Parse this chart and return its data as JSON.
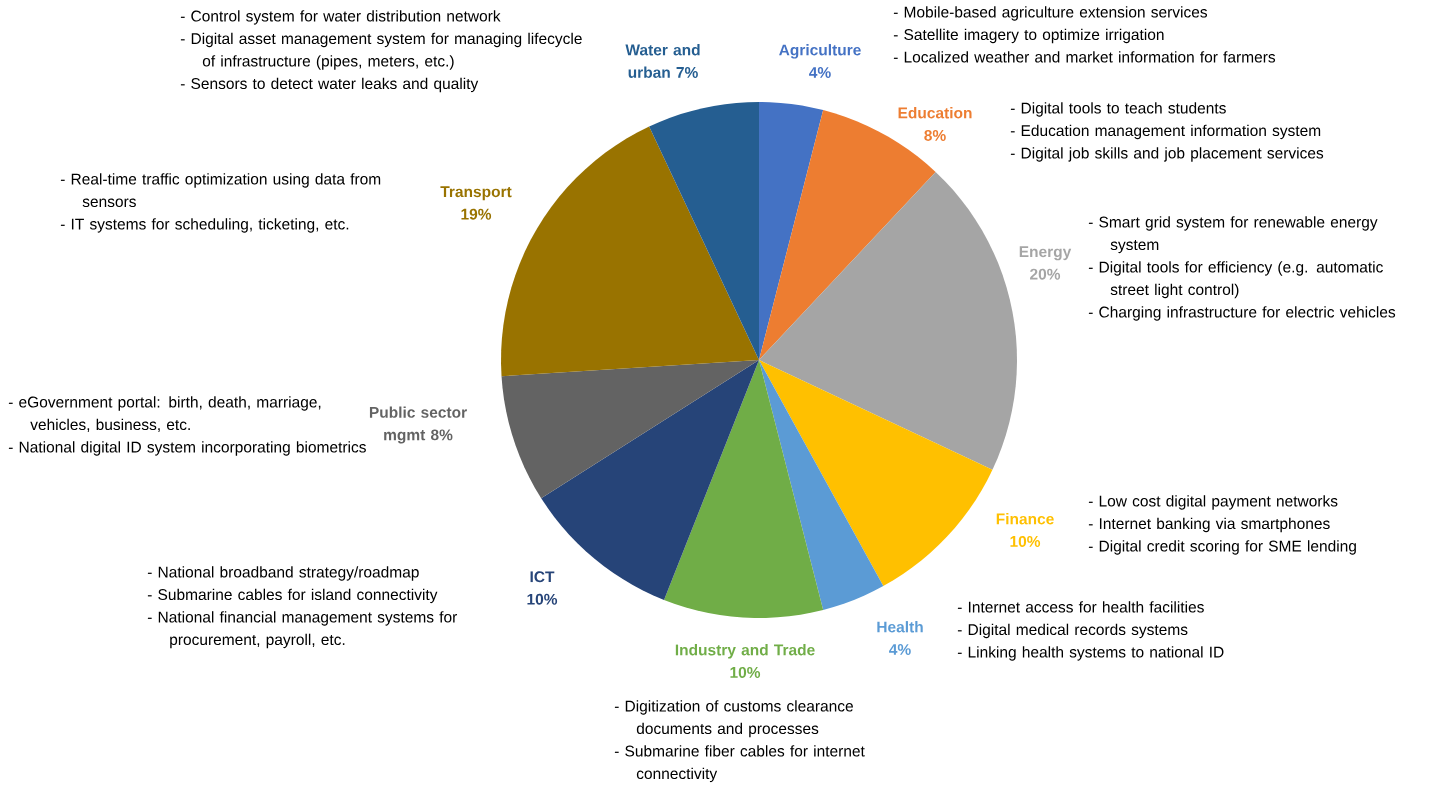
{
  "chart_data": {
    "type": "pie",
    "categories": [
      "Agriculture",
      "Education",
      "Energy",
      "Finance",
      "Health",
      "Industry and Trade",
      "ICT",
      "Public sector mgmt",
      "Transport",
      "Water and urban"
    ],
    "values": [
      4,
      8,
      20,
      10,
      4,
      10,
      10,
      8,
      19,
      7
    ],
    "colors": [
      "#4472c4",
      "#ed7d31",
      "#a5a5a5",
      "#ffc000",
      "#5b9bd5",
      "#70ad47",
      "#264478",
      "#636363",
      "#997300",
      "#255e91"
    ],
    "value_labels": [
      "4%",
      "8%",
      "20%",
      "10%",
      "4%",
      "10%",
      "10%",
      "8%",
      "19%",
      "7%"
    ],
    "annotations": [
      "- Control system for water distribution network",
      "- Digital asset management system for managing lifecycle of infrastructure (pipes, meters, etc.)",
      "- Sensors to detect water leaks and quality",
      "- Mobile-based agriculture extension services",
      "- Satellite imagery to optimize irrigation",
      "- Localized weather and market information for farmers",
      "- Digital tools to teach students",
      "- Education management information system",
      "- Digital job skills and job placement services",
      "- Smart grid system for renewable energy system",
      "- Digital tools for efficiency (e.g. automatic street light control)",
      "- Charging infrastructure for electric vehicles",
      "- Real-time traffic optimization using data from sensors",
      "- IT systems for scheduling, ticketing, etc.",
      "- eGovernment portal: birth, death, marriage, vehicles, business, etc.",
      "- National digital ID system incorporating biometrics",
      "- Low cost digital payment networks",
      "- Internet banking via smartphones",
      "- Digital credit scoring for SME lending",
      "- Internet access for health facilities",
      "- Digital medical records systems",
      "- Linking health systems to national ID",
      "- National broadband strategy/roadmap",
      "- Submarine cables for island connectivity",
      "- National financial management systems for procurement, payroll, etc.",
      "- Digitization of customs clearance documents and processes",
      "- Submarine fiber cables for internet connectivity"
    ]
  }
}
